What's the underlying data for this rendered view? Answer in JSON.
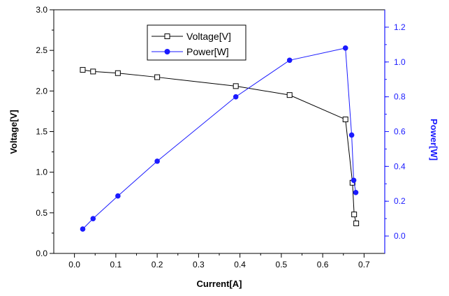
{
  "chart_data": {
    "type": "line",
    "xlabel": "Current[A]",
    "ylabel": "Voltage[V]",
    "y2label": "Power[W]",
    "xlim": [
      -0.05,
      0.75
    ],
    "ylim": [
      0.0,
      3.0
    ],
    "y2lim": [
      -0.1,
      1.3
    ],
    "x_ticks": [
      "0.0",
      "0.1",
      "0.2",
      "0.3",
      "0.4",
      "0.5",
      "0.6",
      "0.7"
    ],
    "y_ticks": [
      "0.0",
      "0.5",
      "1.0",
      "1.5",
      "2.0",
      "2.5",
      "3.0"
    ],
    "y2_ticks": [
      "0.0",
      "0.2",
      "0.4",
      "0.6",
      "0.8",
      "1.0",
      "1.2"
    ],
    "grid": false,
    "legend_position": "top-center",
    "series": [
      {
        "name": "Voltage[V]",
        "axis": "left",
        "color": "#000000",
        "marker": "open-square",
        "x": [
          0.02,
          0.045,
          0.105,
          0.2,
          0.39,
          0.52,
          0.655,
          0.672,
          0.676,
          0.681
        ],
        "y": [
          2.26,
          2.24,
          2.22,
          2.17,
          2.06,
          1.95,
          1.65,
          0.87,
          0.48,
          0.37
        ]
      },
      {
        "name": "Power[W]",
        "axis": "right",
        "color": "#1a1aff",
        "marker": "filled-circle",
        "x": [
          0.02,
          0.045,
          0.105,
          0.2,
          0.39,
          0.52,
          0.655,
          0.67,
          0.675,
          0.68
        ],
        "y": [
          0.04,
          0.1,
          0.23,
          0.43,
          0.8,
          1.01,
          1.08,
          0.58,
          0.32,
          0.25
        ]
      }
    ]
  }
}
